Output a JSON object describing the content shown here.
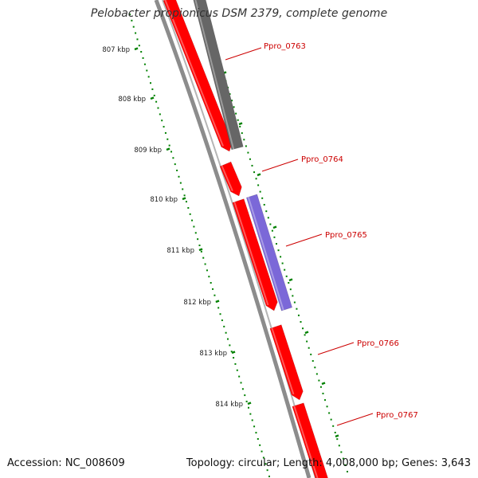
{
  "title": "Pelobacter propionicus DSM 2379, complete genome",
  "accession_text": "Accession: NC_008609",
  "topology_text": "Topology: circular; Length: 4,008,000 bp; Genes: 3,643",
  "colors": {
    "gene_red": "#ff0000",
    "gene_gray": "#666666",
    "gene_purple": "#7b68d8",
    "backbone": "#8c8c8c",
    "tick": "#008000",
    "label_red": "#cc0000"
  },
  "ticks": [
    {
      "label": "807 kbp"
    },
    {
      "label": "808 kbp"
    },
    {
      "label": "809 kbp"
    },
    {
      "label": "810 kbp"
    },
    {
      "label": "811 kbp"
    },
    {
      "label": "812 kbp"
    },
    {
      "label": "813 kbp"
    },
    {
      "label": "814 kbp"
    }
  ],
  "genes": [
    {
      "name": "Ppro_0763",
      "color": "gene_red"
    },
    {
      "name": "Ppro_0764",
      "color": "gene_red"
    },
    {
      "name": "Ppro_0765",
      "color": "gene_red"
    },
    {
      "name": "Ppro_0766",
      "color": "gene_red"
    },
    {
      "name": "Ppro_0767",
      "color": "gene_red"
    }
  ]
}
